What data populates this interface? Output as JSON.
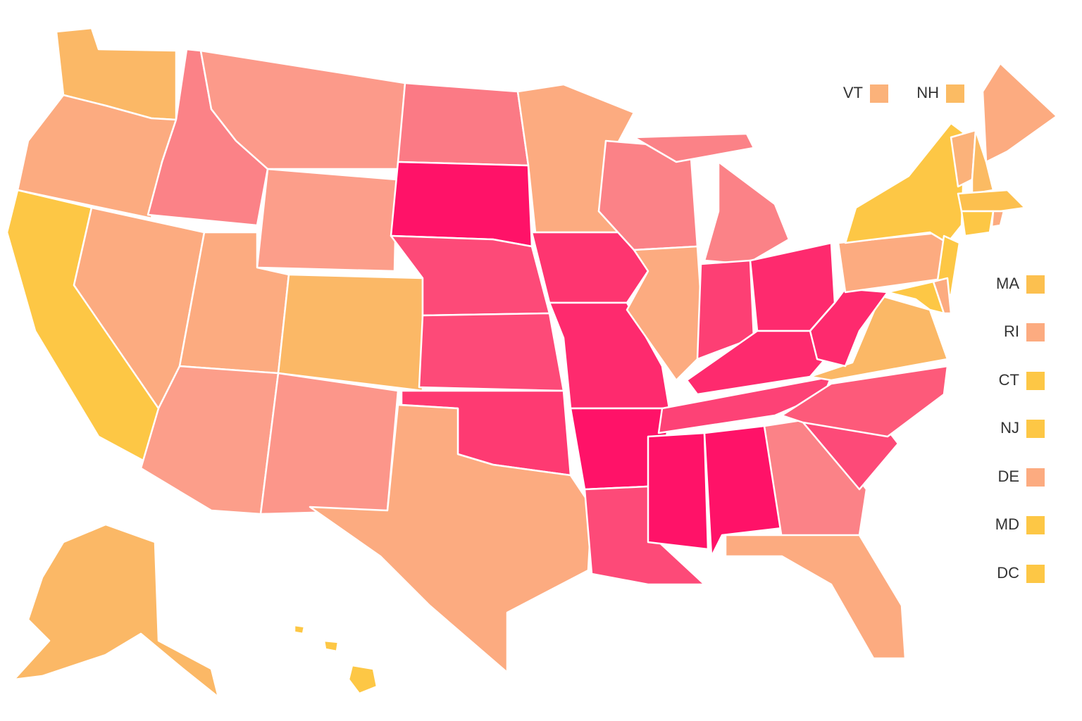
{
  "labels": [
    {
      "text": "VT",
      "color": "#fbb27a"
    },
    {
      "text": "NH",
      "color": "#fbbb63"
    },
    {
      "text": "MA",
      "color": "#fcc04f"
    },
    {
      "text": "RI",
      "color": "#fcab80"
    },
    {
      "text": "CT",
      "color": "#fdc745"
    },
    {
      "text": "NJ",
      "color": "#fdc745"
    },
    {
      "text": "DE",
      "color": "#fcab80"
    },
    {
      "text": "MD",
      "color": "#fdc745"
    },
    {
      "text": "DC",
      "color": "#fdc745"
    }
  ]
}
